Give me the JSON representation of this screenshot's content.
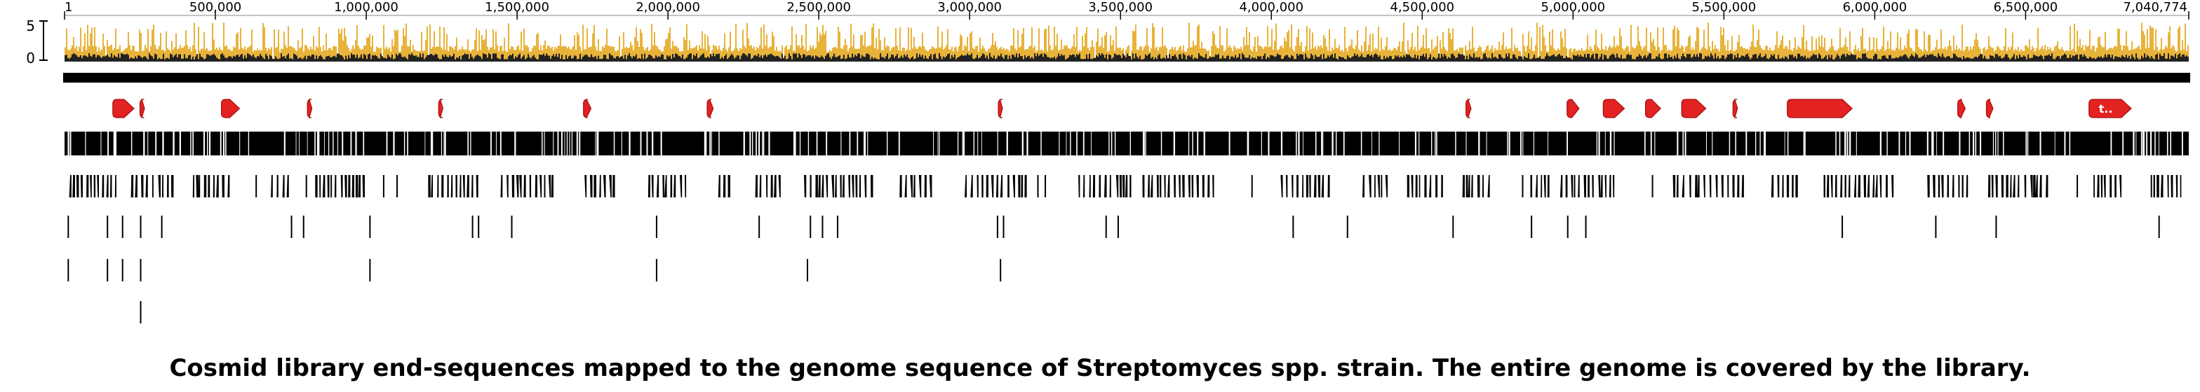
{
  "genome_length": 7040774,
  "axis": {
    "tick_values": [
      1,
      500000,
      1000000,
      1500000,
      2000000,
      2500000,
      3000000,
      3500000,
      4000000,
      4500000,
      5000000,
      5500000,
      6000000,
      6500000,
      7040774
    ],
    "tick_labels": [
      "1",
      "500,000",
      "1,000,000",
      "1,500,000",
      "2,000,000",
      "2,500,000",
      "3,000,000",
      "3,500,000",
      "4,000,000",
      "4,500,000",
      "5,000,000",
      "5,500,000",
      "6,000,000",
      "6,500,000",
      "7,040,774"
    ]
  },
  "coverage": {
    "scale_max_label": "5",
    "scale_min_label": "0",
    "scale_max": 5,
    "fill_color": "#E8B33A",
    "dark_color": "#222222"
  },
  "colors": {
    "annotation": "#E32222",
    "annotation_dark": "#A50F0F",
    "track": "#000000"
  },
  "annotations": [
    {
      "start": 160000,
      "end": 230000,
      "label": ""
    },
    {
      "start": 250000,
      "end": 265000,
      "label": ""
    },
    {
      "start": 520000,
      "end": 580000,
      "label": ""
    },
    {
      "start": 805000,
      "end": 820000,
      "label": ""
    },
    {
      "start": 1240000,
      "end": 1252000,
      "label": ""
    },
    {
      "start": 1720000,
      "end": 1745000,
      "label": ""
    },
    {
      "start": 2130000,
      "end": 2150000,
      "label": ""
    },
    {
      "start": 3095000,
      "end": 3105000,
      "label": ""
    },
    {
      "start": 4645000,
      "end": 4662000,
      "label": ""
    },
    {
      "start": 4980000,
      "end": 5020000,
      "label": ""
    },
    {
      "start": 5100000,
      "end": 5170000,
      "label": ""
    },
    {
      "start": 5240000,
      "end": 5290000,
      "label": ""
    },
    {
      "start": 5360000,
      "end": 5440000,
      "label": ""
    },
    {
      "start": 5530000,
      "end": 5545000,
      "label": ""
    },
    {
      "start": 5710000,
      "end": 5925000,
      "label": ""
    },
    {
      "start": 6275000,
      "end": 6300000,
      "label": ""
    },
    {
      "start": 6370000,
      "end": 6392000,
      "label": ""
    },
    {
      "start": 6710000,
      "end": 6850000,
      "label": "t.."
    }
  ],
  "sparse_tracks": [
    [
      10000,
      140000,
      190000,
      250000,
      320000,
      750000,
      790000,
      1010000,
      1350000,
      1370000,
      1480000,
      1960000,
      2300000,
      2470000,
      2510000,
      2560000,
      3090000,
      3110000,
      3450000,
      3490000,
      4070000,
      4250000,
      4600000,
      4860000,
      4980000,
      5040000,
      5890000,
      6200000,
      6400000,
      6940000
    ],
    [
      10000,
      140000,
      190000,
      250000,
      1010000,
      1960000,
      2460000,
      3100000
    ],
    [
      250000
    ]
  ],
  "caption": "Cosmid library end-sequences mapped to the genome sequence of Streptomyces spp. strain. The entire genome is covered by the library."
}
